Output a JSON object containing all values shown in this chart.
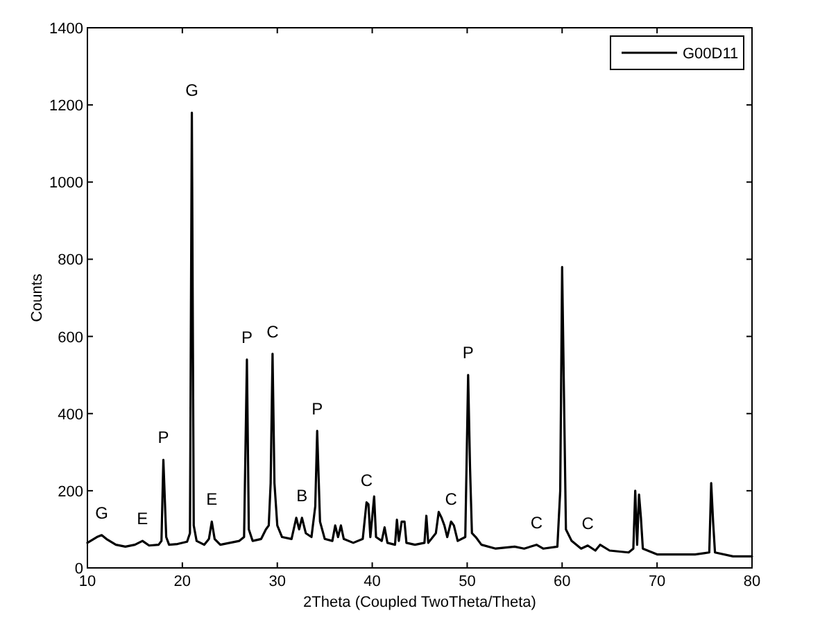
{
  "chart_data": {
    "type": "line",
    "xlabel": "2Theta (Coupled TwoTheta/Theta)",
    "ylabel": "Counts",
    "xlim": [
      10,
      80
    ],
    "ylim": [
      0,
      1400
    ],
    "xticks": [
      10,
      20,
      30,
      40,
      50,
      60,
      70,
      80
    ],
    "yticks": [
      0,
      200,
      400,
      600,
      800,
      1000,
      1200,
      1400
    ],
    "grid": false,
    "legend": "top right",
    "line_style": "solid",
    "series": [
      {
        "name": "G00D11",
        "color": "#000000",
        "x": [
          10,
          11,
          11.5,
          12,
          13,
          14,
          15,
          15.8,
          16.5,
          17.5,
          17.8,
          18,
          18.3,
          18.6,
          19.5,
          20.5,
          20.8,
          21,
          21.2,
          21.5,
          22.3,
          22.8,
          23.1,
          23.4,
          24,
          25,
          26,
          26.5,
          26.8,
          27,
          27.4,
          28.3,
          28.8,
          29.1,
          29.3,
          29.5,
          29.7,
          30,
          30.5,
          31.5,
          32,
          32.3,
          32.6,
          33,
          33.6,
          34,
          34.2,
          34.5,
          35,
          35.8,
          36.1,
          36.4,
          36.7,
          37,
          38,
          39,
          39.4,
          39.6,
          39.8,
          40.2,
          40.4,
          41,
          41.3,
          41.6,
          42.4,
          42.6,
          42.8,
          43.1,
          43.4,
          43.6,
          44.5,
          45.5,
          45.7,
          45.9,
          46.7,
          47,
          47.3,
          47.6,
          47.9,
          48.3,
          48.6,
          49,
          49.8,
          50.1,
          50.3,
          50.5,
          50.9,
          51.5,
          53,
          55,
          56,
          57.3,
          58,
          59.5,
          59.8,
          60,
          60.2,
          60.4,
          61,
          62,
          62.7,
          63.5,
          64,
          65,
          67,
          67.5,
          67.7,
          67.9,
          68.1,
          68.3,
          68.5,
          70,
          72,
          74,
          75.5,
          75.7,
          75.9,
          76.1,
          78,
          80
        ],
        "values": [
          65,
          80,
          85,
          75,
          60,
          55,
          60,
          70,
          58,
          60,
          70,
          280,
          80,
          60,
          62,
          68,
          90,
          1180,
          110,
          70,
          60,
          75,
          120,
          75,
          60,
          65,
          70,
          80,
          540,
          100,
          70,
          75,
          100,
          110,
          220,
          555,
          220,
          110,
          80,
          75,
          130,
          100,
          130,
          90,
          80,
          160,
          355,
          120,
          75,
          70,
          110,
          80,
          110,
          75,
          65,
          75,
          170,
          165,
          80,
          185,
          80,
          70,
          105,
          65,
          60,
          125,
          70,
          120,
          120,
          65,
          60,
          65,
          135,
          65,
          90,
          145,
          130,
          110,
          80,
          120,
          110,
          70,
          80,
          500,
          260,
          90,
          80,
          60,
          50,
          55,
          50,
          60,
          50,
          55,
          200,
          780,
          440,
          100,
          70,
          50,
          58,
          45,
          60,
          45,
          40,
          50,
          200,
          60,
          190,
          130,
          50,
          35,
          35,
          35,
          40,
          220,
          120,
          40,
          30,
          30
        ]
      }
    ],
    "annotations": [
      {
        "text": "G",
        "x": 11.5,
        "y": 85
      },
      {
        "text": "E",
        "x": 15.8,
        "y": 70
      },
      {
        "text": "P",
        "x": 18,
        "y": 280
      },
      {
        "text": "G",
        "x": 21,
        "y": 1180
      },
      {
        "text": "E",
        "x": 23.1,
        "y": 120
      },
      {
        "text": "P",
        "x": 26.8,
        "y": 540
      },
      {
        "text": "C",
        "x": 29.5,
        "y": 555
      },
      {
        "text": "B",
        "x": 32.6,
        "y": 130
      },
      {
        "text": "P",
        "x": 34.2,
        "y": 355
      },
      {
        "text": "C",
        "x": 39.4,
        "y": 170
      },
      {
        "text": "C",
        "x": 48.3,
        "y": 120
      },
      {
        "text": "P",
        "x": 50.1,
        "y": 500
      },
      {
        "text": "C",
        "x": 57.3,
        "y": 60
      },
      {
        "text": "C",
        "x": 62.7,
        "y": 58
      }
    ]
  }
}
